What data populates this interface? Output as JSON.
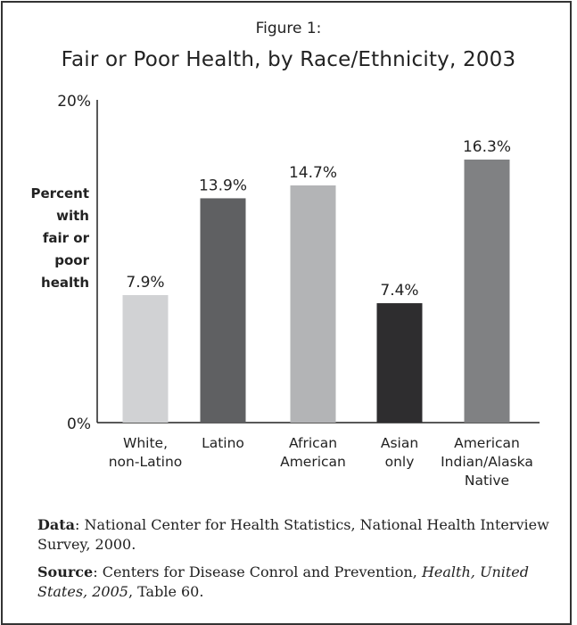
{
  "figure_label": "Figure 1:",
  "title": "Fair or Poor Health, by Race/Ethnicity, 2003",
  "ylabel_lines": [
    "Percent",
    "with",
    "fair or",
    "poor",
    "health"
  ],
  "notes": {
    "data_label": "Data",
    "data_text": ": National Center for Health Statistics, National Health Interview Survey, 2000.",
    "source_label": "Source",
    "source_text_1": ": Centers for Disease Conrol and Prevention, ",
    "source_italic": "Health, United States, 2005",
    "source_text_2": ", Table 60."
  },
  "chart_data": {
    "type": "bar",
    "title": "Fair or Poor Health, by Race/Ethnicity, 2003",
    "ylabel": "Percent with fair or poor health",
    "xlabel": "",
    "ylim": [
      0,
      20
    ],
    "yticks": [
      "0%",
      "20%"
    ],
    "grid": false,
    "categories": [
      [
        "White,",
        "non-Latino"
      ],
      [
        "Latino"
      ],
      [
        "African",
        "American"
      ],
      [
        "Asian",
        "only"
      ],
      [
        "American",
        "Indian/Alaska",
        "Native"
      ]
    ],
    "values": [
      7.9,
      13.9,
      14.7,
      7.4,
      16.3
    ],
    "data_labels": [
      "7.9%",
      "13.9%",
      "14.7%",
      "7.4%",
      "16.3%"
    ],
    "colors": [
      "#d1d2d4",
      "#5f6062",
      "#b3b4b6",
      "#2e2d2f",
      "#808183"
    ]
  }
}
